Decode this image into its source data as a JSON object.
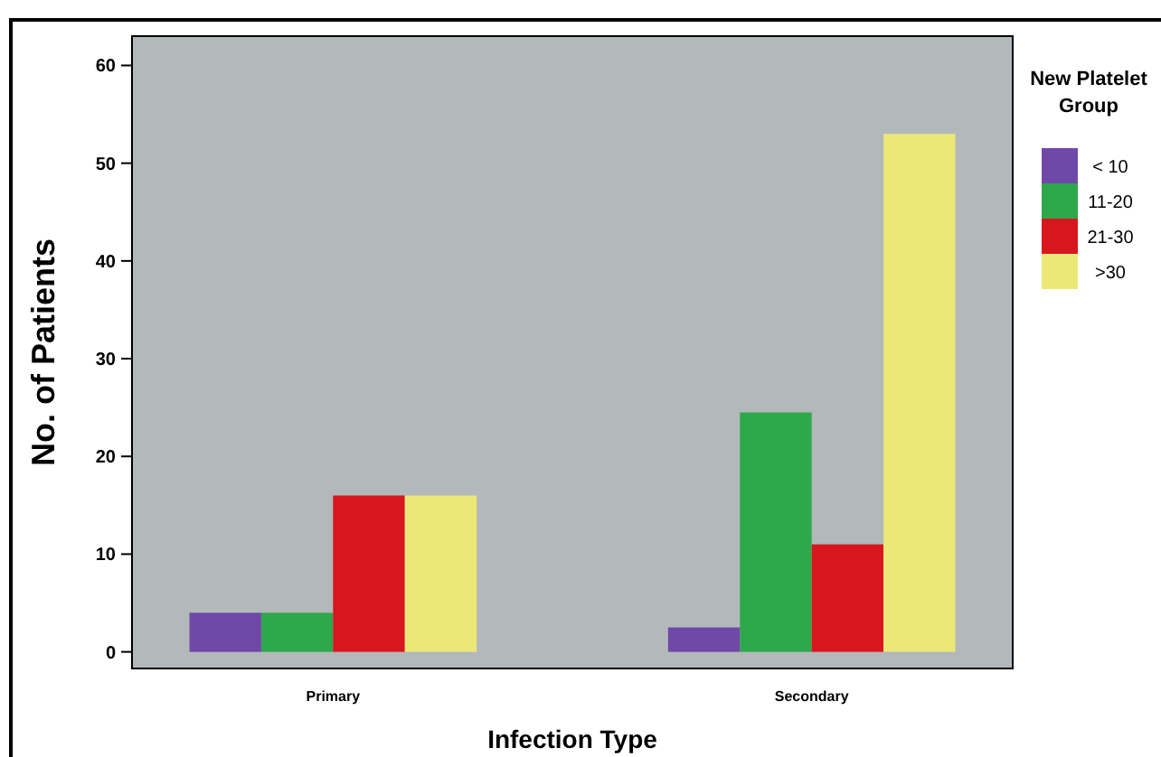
{
  "chart_data": {
    "type": "bar",
    "xlabel": "Infection Type",
    "ylabel": "No. of Patients",
    "legend_title": "New Platelet Group",
    "categories": [
      "Primary",
      "Secondary"
    ],
    "series": [
      {
        "name": "< 10",
        "color": "#7048a8",
        "values": [
          4,
          2.5
        ]
      },
      {
        "name": "11-20",
        "color": "#2ea84a",
        "values": [
          4,
          24.5
        ]
      },
      {
        "name": "21-30",
        "color": "#d8161e",
        "values": [
          16,
          11
        ]
      },
      {
        "name": ">30",
        "color": "#ece878",
        "values": [
          16,
          53
        ]
      }
    ],
    "ylim": [
      -1.7,
      63
    ],
    "yticks": [
      0,
      10,
      20,
      30,
      40,
      50,
      60
    ],
    "grid": false,
    "legend": "right"
  }
}
